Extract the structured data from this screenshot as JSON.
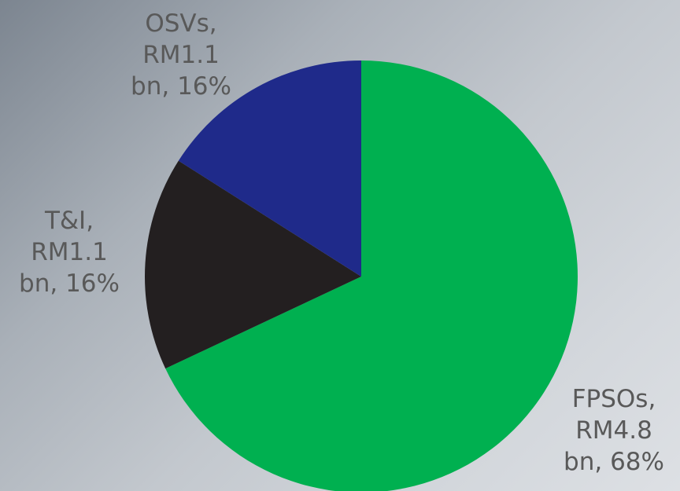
{
  "chart_data": {
    "type": "pie",
    "title": "",
    "series": [
      {
        "slices": [
          {
            "category": "FPSOs",
            "value_label": "RM4.8",
            "unit": "bn",
            "value": 4.8,
            "percent": 68,
            "color": "#00b050"
          },
          {
            "category": "T&I",
            "value_label": "RM1.1",
            "unit": "bn",
            "value": 1.1,
            "percent": 16,
            "color": "#231f20"
          },
          {
            "category": "OSVs",
            "value_label": "RM1.1",
            "unit": "bn",
            "value": 1.1,
            "percent": 16,
            "color": "#1f2a8a"
          }
        ]
      }
    ],
    "start_direction": "top",
    "clockwise": true,
    "legend": "none",
    "data_labels": "outside"
  },
  "labels": {
    "osvs": {
      "line1": "OSVs,",
      "line2": "RM1.1",
      "line3": "bn, 16%"
    },
    "ti": {
      "line1": "T&I,",
      "line2": "RM1.1",
      "line3": "bn, 16%"
    },
    "fpsos": {
      "line1": "FPSOs,",
      "line2": "RM4.8",
      "line3": "bn, 68%"
    }
  }
}
